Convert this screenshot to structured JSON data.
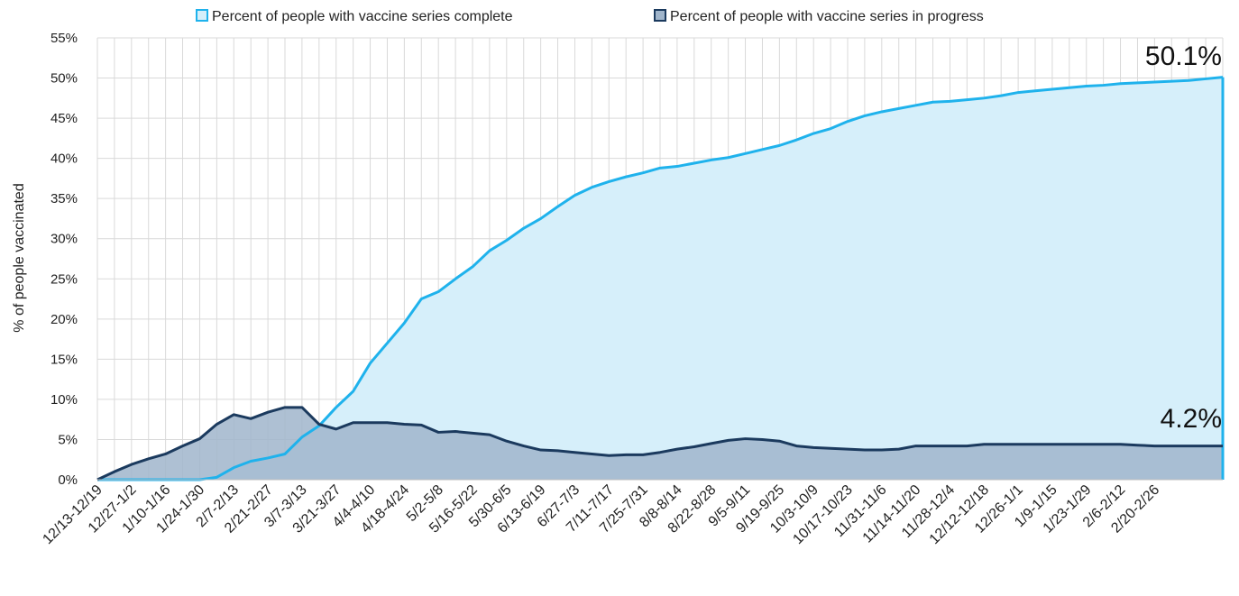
{
  "chart_data": {
    "type": "area",
    "ylabel": "% of people vaccinated",
    "ylim": [
      0,
      55
    ],
    "y_ticks": [
      "0%",
      "5%",
      "10%",
      "15%",
      "20%",
      "25%",
      "30%",
      "35%",
      "40%",
      "45%",
      "50%",
      "55%"
    ],
    "grid": true,
    "legend_position": "top",
    "x_tick_labels": [
      "12/13-12/19",
      "12/27-1/2",
      "1/10-1/16",
      "1/24-1/30",
      "2/7-2/13",
      "2/21-2/27",
      "3/7-3/13",
      "3/21-3/27",
      "4/4-4/10",
      "4/18-4/24",
      "5/2-5/8",
      "5/16-5/22",
      "5/30-6/5",
      "6/13-6/19",
      "6/27-7/3",
      "7/11-7/17",
      "7/25-7/31",
      "8/8-8/14",
      "8/22-8/28",
      "9/5-9/11",
      "9/19-9/25",
      "10/3-10/9",
      "10/17-10/23",
      "11/31-11/6",
      "11/14-11/20",
      "11/28-12/4",
      "12/12-12/18",
      "12/26-1/1",
      "1/9-1/15",
      "1/23-1/29",
      "2/6-2/12",
      "2/20-2/26"
    ],
    "series": [
      {
        "name": "Percent of people with vaccine series complete",
        "color": "#1fb2ec",
        "fill": "#d6effa",
        "values": [
          0,
          0,
          0,
          0,
          0,
          0,
          0,
          0.3,
          1.5,
          2.3,
          2.7,
          3.2,
          5.3,
          6.7,
          9.0,
          11.0,
          14.5,
          17.0,
          19.5,
          22.5,
          23.4,
          25.0,
          26.5,
          28.5,
          29.8,
          31.3,
          32.5,
          34.0,
          35.4,
          36.4,
          37.1,
          37.7,
          38.2,
          38.8,
          39.0,
          39.4,
          39.8,
          40.1,
          40.6,
          41.1,
          41.6,
          42.3,
          43.1,
          43.7,
          44.6,
          45.3,
          45.8,
          46.2,
          46.6,
          47.0,
          47.1,
          47.3,
          47.5,
          47.8,
          48.2,
          48.4,
          48.6,
          48.8,
          49.0,
          49.1,
          49.3,
          49.4,
          49.5,
          49.6,
          49.7,
          49.9,
          50.1
        ]
      },
      {
        "name": "Percent of people with vaccine series in progress",
        "color": "#1b3a5e",
        "fill": "#a0b5cb",
        "values": [
          0,
          1.0,
          1.9,
          2.6,
          3.2,
          4.2,
          5.1,
          6.9,
          8.1,
          7.6,
          8.4,
          9.0,
          9.0,
          6.9,
          6.3,
          7.1,
          7.1,
          7.1,
          6.9,
          6.8,
          5.9,
          6.0,
          5.8,
          5.6,
          4.8,
          4.2,
          3.7,
          3.6,
          3.4,
          3.2,
          3.0,
          3.1,
          3.1,
          3.4,
          3.8,
          4.1,
          4.5,
          4.9,
          5.1,
          5.0,
          4.8,
          4.2,
          4.0,
          3.9,
          3.8,
          3.7,
          3.7,
          3.8,
          4.2,
          4.2,
          4.2,
          4.2,
          4.4,
          4.4,
          4.4,
          4.4,
          4.4,
          4.4,
          4.4,
          4.4,
          4.4,
          4.3,
          4.2,
          4.2,
          4.2,
          4.2,
          4.2
        ]
      }
    ],
    "annotations": [
      {
        "text": "50.1%",
        "series": 0
      },
      {
        "text": "4.2%",
        "series": 1
      }
    ]
  }
}
